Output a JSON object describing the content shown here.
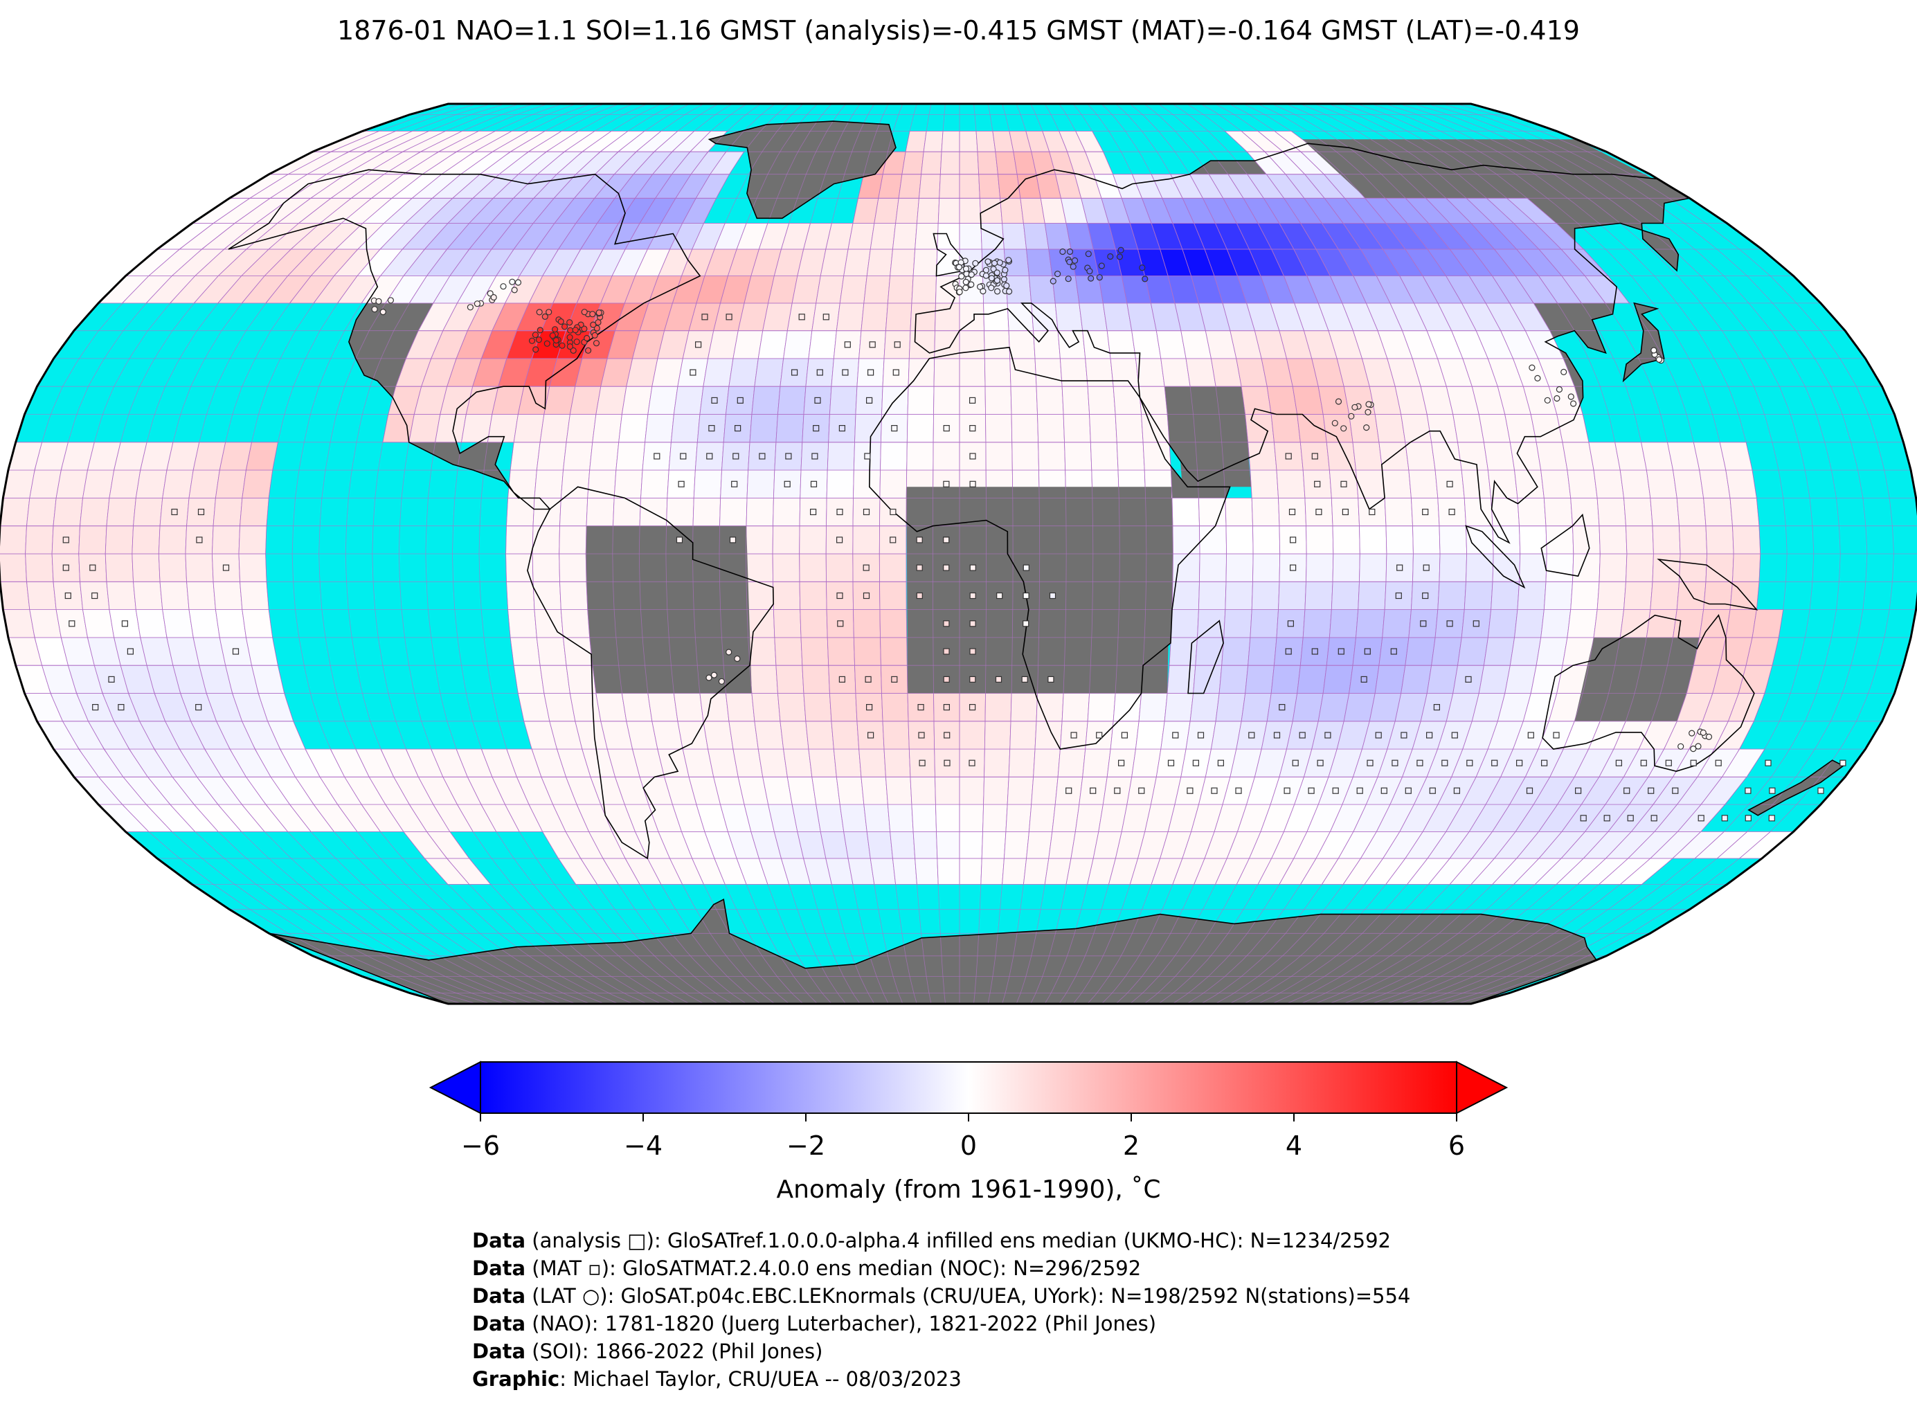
{
  "title": "1876-01 NAO=1.1 SOI=1.16 GMST (analysis)=-0.415 GMST (MAT)=-0.164 GMST (LAT)=-0.419",
  "map": {
    "projection": "Robinson",
    "ocean_no_data_color": "#00eeee",
    "land_no_data_color": "#707070",
    "grid_line_color": "#b070c8",
    "coastline_color": "#000000"
  },
  "colorbar": {
    "cmap": "bwr",
    "min": -6,
    "max": 6,
    "extend": "both",
    "ticks": [
      "−6",
      "−4",
      "−2",
      "0",
      "2",
      "4",
      "6"
    ],
    "label": "Anomaly (from 1961-1990), ˚C"
  },
  "anomaly_regions": [
    {
      "region": "eastern North America",
      "anomaly": 5.5
    },
    {
      "region": "North Atlantic north",
      "anomaly": 1.5
    },
    {
      "region": "Scandinavia",
      "anomaly": 1.5
    },
    {
      "region": "eastern Europe / western Russia",
      "anomaly": -4.5
    },
    {
      "region": "central Siberia",
      "anomaly": -2.5
    },
    {
      "region": "eastern Canada / Greenland",
      "anomaly": -2.5
    },
    {
      "region": "tropical Atlantic",
      "anomaly": -1.5
    },
    {
      "region": "Indian Ocean south",
      "anomaly": -2.0
    },
    {
      "region": "South Atlantic",
      "anomaly": 1.0
    },
    {
      "region": "Southern Ocean south of Australia",
      "anomaly": -1.5
    }
  ],
  "credits": [
    {
      "bold": "Data",
      "rest": " (analysis □): GloSATref.1.0.0.0-alpha.4 infilled ens median (UKMO-HC): N=1234/2592"
    },
    {
      "bold": "Data",
      "rest": " (MAT ▫): GloSATMAT.2.4.0.0 ens median (NOC): N=296/2592"
    },
    {
      "bold": "Data",
      "rest": " (LAT ○): GloSAT.p04c.EBC.LEKnormals (CRU/UEA, UYork): N=198/2592 N(stations)=554"
    },
    {
      "bold": "Data",
      "rest": " (NAO): 1781-1820 (Juerg Luterbacher), 1821-2022 (Phil Jones)"
    },
    {
      "bold": "Data",
      "rest": " (SOI): 1866-2022 (Phil Jones)"
    },
    {
      "bold": "Graphic",
      "rest": ": Michael Taylor, CRU/UEA -- 08/03/2023"
    }
  ]
}
